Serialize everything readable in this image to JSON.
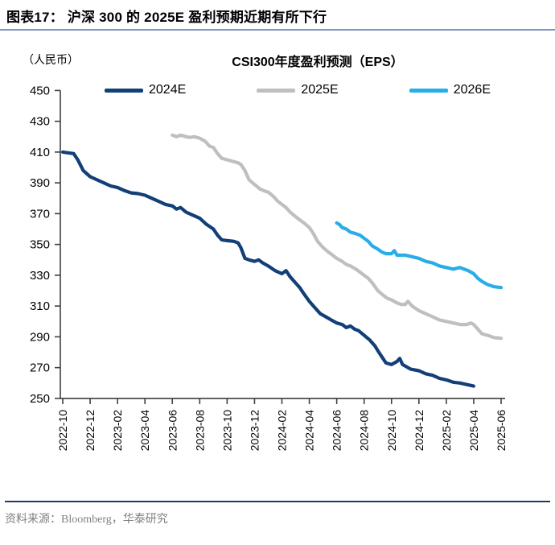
{
  "header": {
    "title": "图表17：  沪深 300 的 2025E 盈利预期近期有所下行"
  },
  "footer": {
    "source": "资料来源：Bloomberg，华泰研究"
  },
  "chart_data": {
    "type": "line",
    "title": "CSI300年度盈利预测（EPS）",
    "unit_label": "（人民币）",
    "ylabel": "",
    "xlabel": "",
    "ylim": [
      250,
      450
    ],
    "y_tick_step": 20,
    "y_tick_labels": [
      "250",
      "270",
      "290",
      "310",
      "330",
      "350",
      "370",
      "390",
      "410",
      "430",
      "450"
    ],
    "x_tick_labels": [
      "2022-10",
      "2022-12",
      "2023-02",
      "2023-04",
      "2023-06",
      "2023-08",
      "2023-10",
      "2023-12",
      "2024-02",
      "2024-04",
      "2024-06",
      "2024-08",
      "2024-10",
      "2024-12",
      "2025-02",
      "2025-04",
      "2025-06"
    ],
    "x_months_span": 32,
    "grid": false,
    "legend_position": "top",
    "axis_color": "#3f3f3f",
    "series": [
      {
        "name": "2024E",
        "color": "#123F77",
        "points": [
          [
            0,
            410
          ],
          [
            0.8,
            409
          ],
          [
            1.1,
            405
          ],
          [
            1.5,
            398
          ],
          [
            2,
            394
          ],
          [
            3,
            390
          ],
          [
            3.5,
            388
          ],
          [
            4,
            387
          ],
          [
            4.5,
            385
          ],
          [
            5,
            383.5
          ],
          [
            5.5,
            383
          ],
          [
            6,
            382
          ],
          [
            6.5,
            380
          ],
          [
            7,
            378
          ],
          [
            7.5,
            376
          ],
          [
            8,
            375
          ],
          [
            8.3,
            373
          ],
          [
            8.6,
            374
          ],
          [
            9,
            371
          ],
          [
            9.5,
            369
          ],
          [
            10,
            367
          ],
          [
            10.5,
            363
          ],
          [
            11,
            360
          ],
          [
            11.3,
            356
          ],
          [
            11.6,
            353
          ],
          [
            12,
            352.5
          ],
          [
            12.5,
            352
          ],
          [
            12.8,
            351
          ],
          [
            13,
            348
          ],
          [
            13.3,
            341
          ],
          [
            13.6,
            340
          ],
          [
            14,
            339
          ],
          [
            14.3,
            340
          ],
          [
            14.6,
            338
          ],
          [
            15,
            336
          ],
          [
            15.5,
            333
          ],
          [
            16,
            331
          ],
          [
            16.3,
            333
          ],
          [
            16.6,
            329
          ],
          [
            17,
            325
          ],
          [
            17.3,
            322
          ],
          [
            17.6,
            318
          ],
          [
            18,
            313
          ],
          [
            18.4,
            309
          ],
          [
            18.8,
            305
          ],
          [
            19.2,
            303
          ],
          [
            19.6,
            301
          ],
          [
            20,
            299
          ],
          [
            20.4,
            298
          ],
          [
            20.7,
            296
          ],
          [
            21,
            297
          ],
          [
            21.3,
            295
          ],
          [
            21.6,
            294
          ],
          [
            22,
            291
          ],
          [
            22.4,
            288
          ],
          [
            22.8,
            284
          ],
          [
            23,
            281
          ],
          [
            23.3,
            277
          ],
          [
            23.6,
            273
          ],
          [
            24,
            272
          ],
          [
            24.4,
            274
          ],
          [
            24.6,
            276
          ],
          [
            24.8,
            272
          ],
          [
            25,
            271
          ],
          [
            25.4,
            269
          ],
          [
            26,
            268
          ],
          [
            26.5,
            266
          ],
          [
            27,
            265
          ],
          [
            27.5,
            263
          ],
          [
            28,
            262
          ],
          [
            28.5,
            260.5
          ],
          [
            29,
            260
          ],
          [
            29.5,
            259
          ],
          [
            30,
            258
          ]
        ]
      },
      {
        "name": "2025E",
        "color": "#BFBFBF",
        "points": [
          [
            8,
            421
          ],
          [
            8.3,
            420
          ],
          [
            8.6,
            421
          ],
          [
            9,
            420
          ],
          [
            9.3,
            419.5
          ],
          [
            9.6,
            420
          ],
          [
            10,
            419
          ],
          [
            10.4,
            417
          ],
          [
            10.7,
            414
          ],
          [
            11,
            413
          ],
          [
            11.3,
            409
          ],
          [
            11.6,
            406
          ],
          [
            12,
            405
          ],
          [
            12.4,
            404
          ],
          [
            12.8,
            403
          ],
          [
            13,
            402
          ],
          [
            13.3,
            398
          ],
          [
            13.6,
            392
          ],
          [
            14,
            389
          ],
          [
            14.4,
            386
          ],
          [
            14.8,
            384.5
          ],
          [
            15,
            384
          ],
          [
            15.4,
            381
          ],
          [
            15.7,
            378
          ],
          [
            16,
            376
          ],
          [
            16.3,
            374
          ],
          [
            16.6,
            371
          ],
          [
            17,
            368
          ],
          [
            17.3,
            366
          ],
          [
            17.6,
            364
          ],
          [
            18,
            361
          ],
          [
            18.3,
            357
          ],
          [
            18.6,
            352
          ],
          [
            19,
            348
          ],
          [
            19.4,
            345
          ],
          [
            19.7,
            343
          ],
          [
            20,
            341
          ],
          [
            20.4,
            339
          ],
          [
            20.7,
            337
          ],
          [
            21,
            336
          ],
          [
            21.4,
            334
          ],
          [
            21.7,
            332
          ],
          [
            22,
            330
          ],
          [
            22.3,
            328
          ],
          [
            22.6,
            325
          ],
          [
            23,
            320
          ],
          [
            23.4,
            317
          ],
          [
            23.7,
            315
          ],
          [
            24,
            314
          ],
          [
            24.4,
            312
          ],
          [
            24.7,
            311
          ],
          [
            25,
            311
          ],
          [
            25.2,
            313
          ],
          [
            25.5,
            310
          ],
          [
            26,
            307
          ],
          [
            26.5,
            305
          ],
          [
            27,
            303
          ],
          [
            27.5,
            301
          ],
          [
            28,
            300
          ],
          [
            28.5,
            299
          ],
          [
            29,
            298
          ],
          [
            29.5,
            298
          ],
          [
            29.8,
            299
          ],
          [
            30,
            298
          ],
          [
            30.3,
            295
          ],
          [
            30.6,
            292
          ],
          [
            31,
            291
          ],
          [
            31.5,
            289.5
          ],
          [
            32,
            289
          ]
        ]
      },
      {
        "name": "2026E",
        "color": "#29ADE9",
        "points": [
          [
            20,
            364
          ],
          [
            20.2,
            363
          ],
          [
            20.4,
            361
          ],
          [
            20.7,
            360
          ],
          [
            21,
            358
          ],
          [
            21.4,
            357
          ],
          [
            21.7,
            356
          ],
          [
            22,
            354
          ],
          [
            22.3,
            352
          ],
          [
            22.6,
            349
          ],
          [
            23,
            347
          ],
          [
            23.3,
            345
          ],
          [
            23.6,
            344
          ],
          [
            24,
            344
          ],
          [
            24.2,
            346
          ],
          [
            24.4,
            343
          ],
          [
            25,
            343
          ],
          [
            25.5,
            342
          ],
          [
            26,
            341
          ],
          [
            26.5,
            339
          ],
          [
            27,
            338
          ],
          [
            27.5,
            336
          ],
          [
            28,
            335
          ],
          [
            28.5,
            334
          ],
          [
            29,
            335
          ],
          [
            29.3,
            334
          ],
          [
            29.6,
            333
          ],
          [
            30,
            331
          ],
          [
            30.3,
            328
          ],
          [
            30.6,
            326
          ],
          [
            31,
            324
          ],
          [
            31.5,
            322.5
          ],
          [
            32,
            322
          ]
        ]
      }
    ]
  }
}
